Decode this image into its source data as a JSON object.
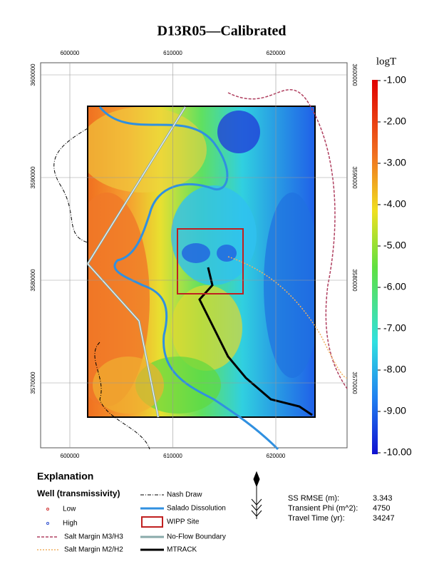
{
  "map": {
    "title": "D13R05—Calibrated",
    "x_ticks": [
      600000,
      610000,
      620000
    ],
    "y_ticks": [
      3600000,
      3590000,
      3580000,
      3570000
    ],
    "colorbar": {
      "label": "logT",
      "ticks": [
        {
          "value": -1,
          "label": "-1.00"
        },
        {
          "value": -2,
          "label": "-2.00"
        },
        {
          "value": -3,
          "label": "-3.00"
        },
        {
          "value": -4,
          "label": "-4.00"
        },
        {
          "value": -5,
          "label": "-5.00"
        },
        {
          "value": -6,
          "label": "-6.00"
        },
        {
          "value": -7,
          "label": "-7.00"
        },
        {
          "value": -8,
          "label": "-8.00"
        },
        {
          "value": -9,
          "label": "-9.00"
        },
        {
          "value": -10,
          "label": "-10.00"
        }
      ]
    }
  },
  "legend": {
    "title": "Explanation",
    "subtitle": "Well (transmissivity)",
    "left": [
      "Low",
      "High",
      "Salt Margin M3/H3",
      "Salt Margin M2/H2"
    ],
    "right": [
      "Nash Draw",
      "Salado Dissolution",
      "WIPP Site",
      "No-Flow Boundary",
      "MTRACK"
    ]
  },
  "stats": [
    {
      "label": "SS RMSE (m):",
      "value": 3.343
    },
    {
      "label": "Transient Phi (m^2):",
      "value": 4750
    },
    {
      "label": "Travel Time (yr):",
      "value": 34247
    }
  ]
}
